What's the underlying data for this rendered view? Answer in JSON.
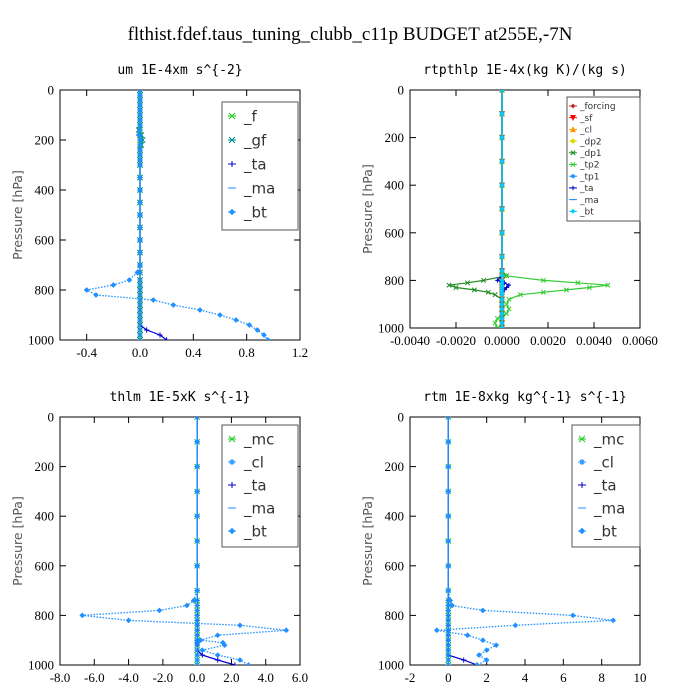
{
  "title": "flthist.fdef.taus_tuning_clubb_c11p  BUDGET at255E,-7N",
  "chart_data": [
    {
      "type": "line",
      "title": "um  1E-4xm s^{-2}",
      "ylabel": "Pressure [hPa]",
      "xlim": [
        -0.6,
        1.2
      ],
      "ylim": [
        1000,
        0
      ],
      "xticks": [
        -0.4,
        0.0,
        0.4,
        0.8,
        1.2
      ],
      "xtick_labels": [
        "-0.4",
        "0.0",
        "0.4",
        "0.8",
        "1.2"
      ],
      "yticks": [
        0,
        200,
        400,
        600,
        800,
        1000
      ],
      "y": [
        0,
        20,
        40,
        60,
        80,
        100,
        120,
        140,
        160,
        180,
        200,
        220,
        240,
        260,
        280,
        300,
        350,
        400,
        450,
        500,
        550,
        600,
        650,
        700,
        730,
        760,
        780,
        800,
        820,
        840,
        860,
        880,
        900,
        920,
        940,
        960,
        980,
        1000
      ],
      "series": [
        {
          "name": "_f",
          "color": "#22cc22",
          "marker": "x",
          "values": [
            0,
            0,
            0,
            0,
            0,
            0,
            0,
            0,
            0,
            0,
            0,
            0,
            0,
            0,
            0,
            0,
            0,
            0,
            0,
            0,
            0,
            0,
            0,
            0,
            0,
            0,
            0,
            0,
            0,
            0,
            0,
            0,
            0,
            0,
            0,
            0,
            0,
            0
          ]
        },
        {
          "name": "_gf",
          "color": "#008b8b",
          "marker": "x",
          "values": [
            0,
            0,
            0,
            0,
            0,
            0,
            0,
            0,
            -0.01,
            0.01,
            0.02,
            0.01,
            0,
            0,
            0,
            0,
            0,
            0,
            0,
            0,
            0,
            0,
            0,
            0,
            0,
            0,
            0,
            0,
            0,
            0,
            0,
            0,
            0,
            0,
            0,
            0,
            0,
            0
          ]
        },
        {
          "name": "_ta",
          "color": "#0000cc",
          "marker": "+",
          "values": [
            0,
            0,
            0,
            0,
            0,
            0,
            0,
            0,
            0,
            0,
            0,
            0,
            0,
            0,
            0,
            0,
            0,
            0,
            0,
            0,
            0,
            0,
            0,
            0,
            0,
            0,
            0,
            0,
            0,
            0,
            0,
            0,
            0,
            0,
            0,
            0.05,
            0.15,
            0.2
          ]
        },
        {
          "name": "_ma",
          "color": "#1e90ff",
          "marker": "-",
          "values": [
            0,
            0,
            0,
            0,
            0,
            0,
            0,
            0,
            0,
            0,
            0,
            0,
            0,
            0,
            0,
            0,
            0,
            0,
            0,
            0,
            0,
            0,
            0,
            0,
            0,
            0,
            0,
            0,
            0,
            0,
            0,
            0,
            0,
            0,
            0,
            0,
            0,
            0
          ]
        },
        {
          "name": "_bt",
          "color": "#1e90ff",
          "marker": "diamond",
          "dotted": true,
          "values": [
            0,
            0,
            0,
            0,
            0,
            0,
            0,
            0,
            0,
            -0.01,
            0,
            0,
            0,
            0,
            0,
            0,
            0,
            0,
            0,
            0,
            0,
            0,
            0,
            0,
            -0.02,
            -0.08,
            -0.2,
            -0.4,
            -0.33,
            0.1,
            0.25,
            0.45,
            0.6,
            0.72,
            0.82,
            0.88,
            0.93,
            0.96
          ]
        }
      ]
    },
    {
      "type": "line",
      "title": "rtpthlp  1E-4x(kg K)/(kg s)",
      "ylabel": "Pressure [hPa]",
      "xlim": [
        -0.004,
        0.006
      ],
      "ylim": [
        1000,
        0
      ],
      "xticks": [
        -0.004,
        -0.002,
        0,
        0.002,
        0.004,
        0.006
      ],
      "xtick_labels": [
        "-0.0040",
        "-0.0020",
        "0.0000",
        "0.0020",
        "0.0040",
        "0.0060"
      ],
      "yticks": [
        0,
        200,
        400,
        600,
        800,
        1000
      ],
      "y": [
        0,
        100,
        200,
        300,
        400,
        500,
        600,
        700,
        760,
        780,
        800,
        810,
        820,
        830,
        840,
        850,
        860,
        880,
        900,
        920,
        940,
        960,
        980,
        1000
      ],
      "series": [
        {
          "name": "_forcing",
          "color": "#cc2222",
          "marker": "diamond",
          "values": [
            0,
            0,
            0,
            0,
            0,
            0,
            0,
            0,
            0,
            0,
            0,
            0,
            0,
            0,
            0,
            0,
            0,
            0,
            0,
            0,
            0,
            0,
            0,
            0
          ]
        },
        {
          "name": "_sf",
          "color": "#ff0000",
          "marker": "triangle-down",
          "values": [
            0,
            0,
            0,
            0,
            0,
            0,
            0,
            0,
            0,
            0,
            0,
            0,
            0,
            0,
            0,
            0,
            0,
            0,
            0,
            0,
            0,
            0,
            0,
            0
          ]
        },
        {
          "name": "_cl",
          "color": "#ff9900",
          "marker": "triangle",
          "values": [
            0,
            0,
            0,
            0,
            0,
            0,
            0,
            0,
            0,
            0,
            0,
            0,
            0,
            0,
            0,
            0,
            0,
            0,
            0,
            0,
            0,
            0,
            0,
            0
          ]
        },
        {
          "name": "_dp2",
          "color": "#dddd00",
          "marker": "circle",
          "values": [
            0,
            0,
            0,
            0,
            0,
            0,
            0,
            0,
            0,
            0,
            0,
            0,
            0,
            0,
            0,
            0,
            0,
            0,
            0,
            0,
            0,
            0,
            0,
            0
          ]
        },
        {
          "name": "_dp1",
          "color": "#228b22",
          "marker": "x",
          "values": [
            0,
            0,
            0,
            0,
            0,
            0,
            0,
            0,
            0,
            0.0002,
            -0.0008,
            -0.0015,
            -0.0023,
            -0.002,
            -0.0012,
            -0.0006,
            -0.0003,
            0,
            0,
            0,
            0,
            0,
            0,
            0
          ]
        },
        {
          "name": "_tp2",
          "color": "#33cc33",
          "marker": "x",
          "values": [
            0,
            0,
            0,
            0,
            0,
            0,
            0,
            0,
            0,
            0.0001,
            0.0018,
            0.0033,
            0.0046,
            0.0038,
            0.0028,
            0.0018,
            0.0008,
            0.0003,
            0.0002,
            0.0003,
            0.0002,
            -0.0002,
            -0.0003,
            -0.0002
          ]
        },
        {
          "name": "_tp1",
          "color": "#1e90ff",
          "marker": "asterisk",
          "values": [
            0,
            0,
            0,
            0,
            0,
            0,
            0,
            0,
            0,
            0,
            0,
            0,
            0,
            0,
            0,
            0,
            0,
            0,
            0,
            0,
            0,
            0,
            0,
            0
          ]
        },
        {
          "name": "_ta",
          "color": "#0000cc",
          "marker": "+",
          "values": [
            0,
            0,
            0,
            0,
            0,
            0,
            0,
            0,
            0,
            0,
            -0.0002,
            0.0001,
            0.0003,
            0.0002,
            0.0001,
            0,
            0,
            0,
            0,
            0,
            0,
            0,
            0,
            0
          ]
        },
        {
          "name": "_ma",
          "color": "#1e90ff",
          "marker": "-",
          "values": [
            0,
            0,
            0,
            0,
            0,
            0,
            0,
            0,
            0,
            0,
            0,
            0,
            0,
            0,
            0,
            0,
            0,
            0,
            0,
            0,
            0,
            0,
            0,
            0
          ]
        },
        {
          "name": "_bt",
          "color": "#00ccff",
          "marker": "diamond",
          "values": [
            0,
            0,
            0,
            0,
            0,
            0,
            0,
            0,
            0,
            0,
            0,
            0,
            0,
            0,
            0,
            0,
            0,
            0,
            0,
            0,
            0,
            0,
            0,
            0
          ]
        }
      ]
    },
    {
      "type": "line",
      "title": "thlm  1E-5xK s^{-1}",
      "ylabel": "Pressure [hPa]",
      "xlim": [
        -8,
        6
      ],
      "ylim": [
        1000,
        0
      ],
      "xticks": [
        -8,
        -6,
        -4,
        -2,
        0,
        2,
        4,
        6
      ],
      "xtick_labels": [
        "-8.0",
        "-6.0",
        "-4.0",
        "-2.0",
        "0.0",
        "2.0",
        "4.0",
        "6.0"
      ],
      "yticks": [
        0,
        200,
        400,
        600,
        800,
        1000
      ],
      "y": [
        0,
        100,
        200,
        300,
        400,
        500,
        600,
        700,
        740,
        760,
        780,
        800,
        820,
        840,
        860,
        880,
        900,
        910,
        920,
        940,
        960,
        980,
        1000
      ],
      "series": [
        {
          "name": "_mc",
          "color": "#22cc22",
          "marker": "x",
          "values": [
            0,
            0,
            0,
            0,
            0,
            0,
            0,
            0,
            0,
            0,
            0,
            0,
            0,
            0,
            0,
            0,
            0,
            0,
            0,
            0,
            0,
            0,
            0
          ]
        },
        {
          "name": "_cl",
          "color": "#1e90ff",
          "marker": "asterisk",
          "values": [
            0,
            0,
            0,
            0,
            0,
            0,
            0,
            0,
            0,
            0,
            0,
            0,
            0,
            0,
            0,
            0,
            0,
            0,
            0,
            0,
            0,
            0,
            0
          ]
        },
        {
          "name": "_ta",
          "color": "#0000cc",
          "marker": "+",
          "values": [
            0,
            0,
            0,
            0,
            0,
            0,
            0,
            0,
            0,
            0,
            0,
            0,
            0,
            0,
            0,
            0,
            0,
            0,
            0,
            0,
            0.3,
            1.2,
            2.2
          ]
        },
        {
          "name": "_ma",
          "color": "#1e90ff",
          "marker": "-",
          "values": [
            0,
            0,
            0,
            0,
            0,
            0,
            0,
            0,
            0,
            0,
            0,
            0,
            0,
            0,
            0,
            0,
            0,
            0,
            0,
            0,
            0,
            0,
            0
          ]
        },
        {
          "name": "_bt",
          "color": "#1e90ff",
          "marker": "diamond",
          "dotted": true,
          "values": [
            0,
            0,
            0,
            0,
            0,
            0,
            0,
            0,
            -0.2,
            -0.6,
            -2.2,
            -6.7,
            -4.0,
            2.5,
            5.2,
            1.2,
            0.2,
            1.5,
            1.6,
            0.3,
            1.2,
            2.5,
            3.0
          ]
        }
      ]
    },
    {
      "type": "line",
      "title": "rtm  1E-8xkg kg^{-1} s^{-1}",
      "ylabel": "Pressure [hPa]",
      "xlim": [
        -2,
        10
      ],
      "ylim": [
        1000,
        0
      ],
      "xticks": [
        -2,
        0,
        2,
        4,
        6,
        8,
        10
      ],
      "xtick_labels": [
        "-2",
        "0",
        "2",
        "4",
        "6",
        "8",
        "10"
      ],
      "yticks": [
        0,
        200,
        400,
        600,
        800,
        1000
      ],
      "y": [
        0,
        100,
        200,
        300,
        400,
        500,
        600,
        700,
        740,
        760,
        780,
        800,
        820,
        840,
        860,
        880,
        900,
        920,
        940,
        960,
        980,
        1000
      ],
      "series": [
        {
          "name": "_mc",
          "color": "#22cc22",
          "marker": "x",
          "values": [
            0,
            0,
            0,
            0,
            0,
            0,
            0,
            0,
            0,
            0,
            0,
            0,
            0,
            0,
            0,
            0,
            0,
            0,
            0,
            0,
            0,
            0
          ]
        },
        {
          "name": "_cl",
          "color": "#1e90ff",
          "marker": "asterisk",
          "values": [
            0,
            0,
            0,
            0,
            0,
            0,
            0,
            0,
            0,
            0,
            0,
            0,
            0,
            0,
            0,
            0,
            0,
            0,
            0,
            0,
            0,
            0
          ]
        },
        {
          "name": "_ta",
          "color": "#0000cc",
          "marker": "+",
          "values": [
            0,
            0,
            0,
            0,
            0,
            0,
            0,
            0,
            0,
            0,
            0,
            0,
            0,
            0,
            0,
            0,
            0,
            0,
            0,
            0,
            0.8,
            1.5
          ]
        },
        {
          "name": "_ma",
          "color": "#1e90ff",
          "marker": "-",
          "values": [
            0,
            0,
            0,
            0,
            0,
            0,
            0,
            0,
            0,
            0,
            0,
            0,
            0,
            0,
            0,
            0,
            0,
            0,
            0,
            0,
            0,
            0
          ]
        },
        {
          "name": "_bt",
          "color": "#1e90ff",
          "marker": "diamond",
          "dotted": true,
          "values": [
            0,
            0,
            0,
            0,
            0,
            0,
            0,
            0,
            0.1,
            0.2,
            1.8,
            6.5,
            8.6,
            3.5,
            -0.6,
            1.0,
            1.8,
            2.5,
            2.0,
            1.6,
            2.0,
            1.5
          ]
        }
      ]
    }
  ]
}
